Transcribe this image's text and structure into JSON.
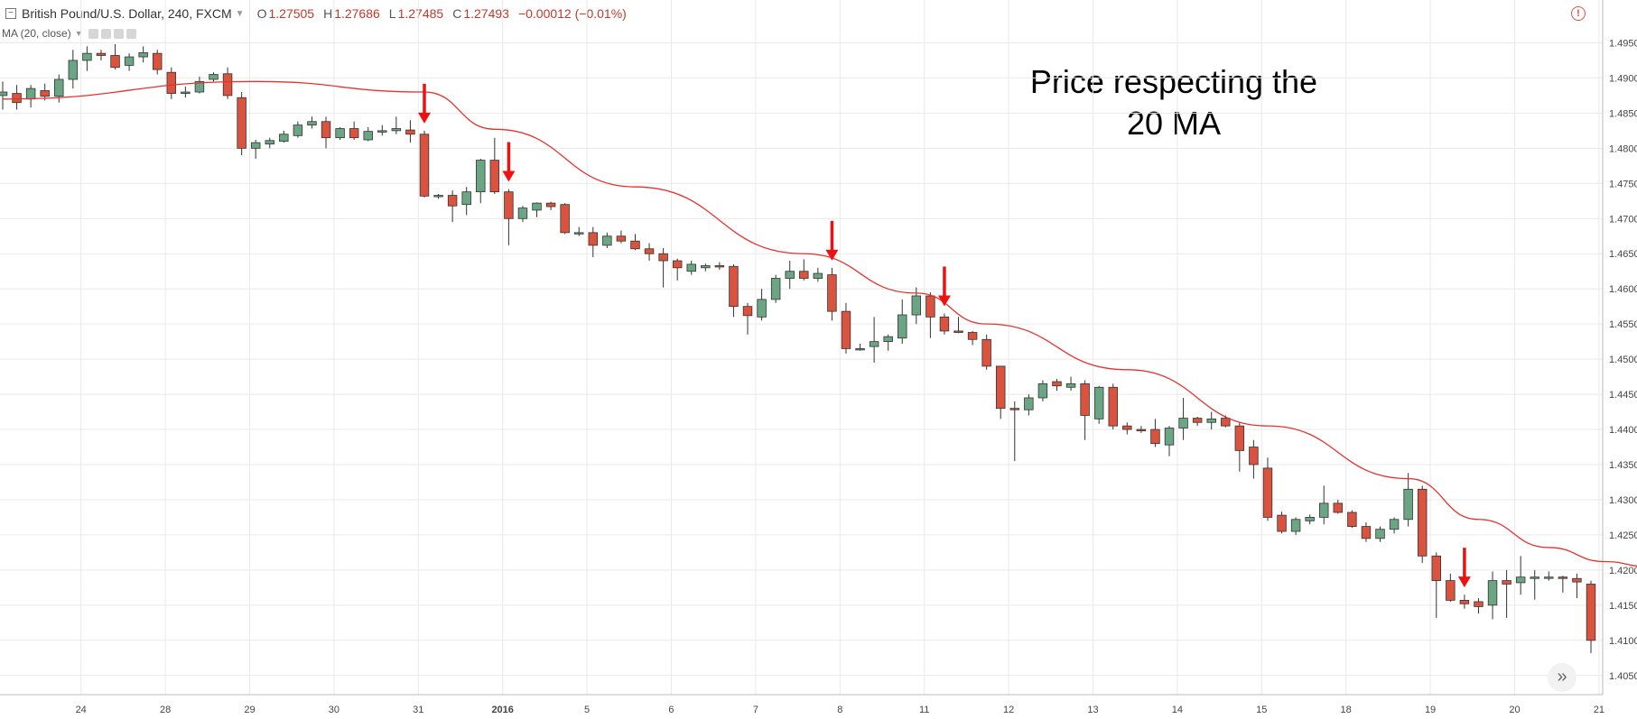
{
  "header": {
    "symbol": "British Pound/U.S. Dollar, 240, FXCM",
    "open_label": "O",
    "open": "1.27505",
    "high_label": "H",
    "high": "1.27686",
    "low_label": "L",
    "low": "1.27485",
    "close_label": "C",
    "close": "1.27493",
    "change": "−0.00012 (−0.01%)"
  },
  "indicator": {
    "label": "MA (20, close)"
  },
  "annotation": {
    "line1": "Price respecting the",
    "line2": "20 MA"
  },
  "colors": {
    "up": "#6aa584",
    "down": "#d9533f",
    "ma": "#e8312f",
    "arrow": "#ee1111",
    "grid": "#e9e9e9"
  },
  "chart_data": {
    "type": "candlestick",
    "title": "",
    "x_ticks": [
      "24",
      "28",
      "29",
      "30",
      "31",
      "2016",
      "5",
      "6",
      "7",
      "8",
      "11",
      "12",
      "13",
      "14",
      "15",
      "18",
      "19",
      "20",
      "21"
    ],
    "y_ticks": [
      "1.49500",
      "1.49000",
      "1.48500",
      "1.48000",
      "1.47500",
      "1.47000",
      "1.46500",
      "1.46000",
      "1.45500",
      "1.45000",
      "1.44500",
      "1.44000",
      "1.43500",
      "1.43000",
      "1.42500",
      "1.42000",
      "1.41500",
      "1.41000",
      "1.40500"
    ],
    "ylim": [
      1.4042,
      1.4966
    ],
    "ohlc": [
      [
        1.4875,
        1.4895,
        1.4855,
        1.488
      ],
      [
        1.4878,
        1.489,
        1.4855,
        1.4865
      ],
      [
        1.487,
        1.489,
        1.4858,
        1.4885
      ],
      [
        1.4882,
        1.4892,
        1.4868,
        1.4874
      ],
      [
        1.4874,
        1.4905,
        1.4865,
        1.4898
      ],
      [
        1.4898,
        1.494,
        1.4885,
        1.4925
      ],
      [
        1.4925,
        1.4945,
        1.491,
        1.4935
      ],
      [
        1.4935,
        1.494,
        1.4925,
        1.4932
      ],
      [
        1.4932,
        1.4948,
        1.4912,
        1.4915
      ],
      [
        1.4918,
        1.4935,
        1.491,
        1.493
      ],
      [
        1.493,
        1.4945,
        1.4922,
        1.4936
      ],
      [
        1.4935,
        1.494,
        1.4905,
        1.4912
      ],
      [
        1.4908,
        1.4915,
        1.487,
        1.4878
      ],
      [
        1.4878,
        1.4888,
        1.4872,
        1.488
      ],
      [
        1.488,
        1.4902,
        1.4878,
        1.4895
      ],
      [
        1.4898,
        1.4908,
        1.4895,
        1.4905
      ],
      [
        1.4906,
        1.4915,
        1.487,
        1.4875
      ],
      [
        1.4872,
        1.488,
        1.479,
        1.48
      ],
      [
        1.48,
        1.4812,
        1.4785,
        1.4808
      ],
      [
        1.4806,
        1.4815,
        1.48,
        1.4811
      ],
      [
        1.481,
        1.4825,
        1.4808,
        1.482
      ],
      [
        1.4818,
        1.4838,
        1.4815,
        1.4833
      ],
      [
        1.4833,
        1.4845,
        1.4828,
        1.4838
      ],
      [
        1.4838,
        1.4845,
        1.48,
        1.4815
      ],
      [
        1.4815,
        1.483,
        1.4812,
        1.4828
      ],
      [
        1.4828,
        1.4838,
        1.4812,
        1.4815
      ],
      [
        1.4812,
        1.483,
        1.481,
        1.4824
      ],
      [
        1.4823,
        1.4833,
        1.4818,
        1.4825
      ],
      [
        1.4825,
        1.4845,
        1.482,
        1.4828
      ],
      [
        1.4826,
        1.484,
        1.4808,
        1.482
      ],
      [
        1.482,
        1.4825,
        1.473,
        1.4732
      ],
      [
        1.4732,
        1.4735,
        1.4728,
        1.4733
      ],
      [
        1.4733,
        1.474,
        1.4695,
        1.4718
      ],
      [
        1.472,
        1.4745,
        1.4705,
        1.4738
      ],
      [
        1.4738,
        1.4785,
        1.4722,
        1.4783
      ],
      [
        1.4783,
        1.4815,
        1.4735,
        1.4738
      ],
      [
        1.4738,
        1.4742,
        1.4662,
        1.47
      ],
      [
        1.47,
        1.4718,
        1.4695,
        1.4715
      ],
      [
        1.4712,
        1.4723,
        1.4702,
        1.4722
      ],
      [
        1.4722,
        1.4724,
        1.4712,
        1.4717
      ],
      [
        1.472,
        1.4722,
        1.4678,
        1.468
      ],
      [
        1.468,
        1.4688,
        1.4675,
        1.468
      ],
      [
        1.468,
        1.4688,
        1.4645,
        1.4662
      ],
      [
        1.4662,
        1.468,
        1.4658,
        1.4675
      ],
      [
        1.4675,
        1.4683,
        1.4665,
        1.4668
      ],
      [
        1.4668,
        1.4678,
        1.4655,
        1.4657
      ],
      [
        1.4657,
        1.4665,
        1.464,
        1.465
      ],
      [
        1.465,
        1.4658,
        1.4602,
        1.464
      ],
      [
        1.464,
        1.4643,
        1.4612,
        1.463
      ],
      [
        1.4625,
        1.464,
        1.462,
        1.4635
      ],
      [
        1.463,
        1.4636,
        1.4625,
        1.4633
      ],
      [
        1.4633,
        1.4638,
        1.4627,
        1.4632
      ],
      [
        1.4632,
        1.4635,
        1.456,
        1.4575
      ],
      [
        1.4575,
        1.458,
        1.4535,
        1.4562
      ],
      [
        1.456,
        1.46,
        1.4555,
        1.4585
      ],
      [
        1.4585,
        1.462,
        1.458,
        1.4615
      ],
      [
        1.4615,
        1.464,
        1.46,
        1.4625
      ],
      [
        1.4625,
        1.4642,
        1.4612,
        1.4615
      ],
      [
        1.4615,
        1.463,
        1.461,
        1.4622
      ],
      [
        1.462,
        1.463,
        1.4555,
        1.4568
      ],
      [
        1.4568,
        1.458,
        1.4508,
        1.4515
      ],
      [
        1.4515,
        1.4522,
        1.4512,
        1.4515
      ],
      [
        1.4518,
        1.456,
        1.4495,
        1.4525
      ],
      [
        1.4525,
        1.4535,
        1.4512,
        1.4532
      ],
      [
        1.453,
        1.4585,
        1.4522,
        1.4563
      ],
      [
        1.4563,
        1.4602,
        1.455,
        1.459
      ],
      [
        1.459,
        1.4595,
        1.453,
        1.456
      ],
      [
        1.456,
        1.4565,
        1.4535,
        1.454
      ],
      [
        1.454,
        1.456,
        1.4537,
        1.4538
      ],
      [
        1.4538,
        1.454,
        1.452,
        1.4528
      ],
      [
        1.4528,
        1.4535,
        1.4485,
        1.449
      ],
      [
        1.449,
        1.449,
        1.4415,
        1.443
      ],
      [
        1.443,
        1.444,
        1.4355,
        1.4428
      ],
      [
        1.4428,
        1.445,
        1.442,
        1.4445
      ],
      [
        1.4445,
        1.447,
        1.444,
        1.4465
      ],
      [
        1.4468,
        1.4472,
        1.4455,
        1.4462
      ],
      [
        1.446,
        1.4475,
        1.4455,
        1.4465
      ],
      [
        1.4465,
        1.447,
        1.4385,
        1.442
      ],
      [
        1.4415,
        1.4462,
        1.4408,
        1.446
      ],
      [
        1.446,
        1.4465,
        1.44,
        1.4405
      ],
      [
        1.4405,
        1.441,
        1.4393,
        1.44
      ],
      [
        1.44,
        1.4405,
        1.4395,
        1.4398
      ],
      [
        1.44,
        1.4415,
        1.4375,
        1.438
      ],
      [
        1.4378,
        1.4405,
        1.4362,
        1.4402
      ],
      [
        1.4402,
        1.4445,
        1.4385,
        1.4416
      ],
      [
        1.4416,
        1.4418,
        1.4405,
        1.441
      ],
      [
        1.441,
        1.4425,
        1.44,
        1.4415
      ],
      [
        1.4416,
        1.442,
        1.4403,
        1.4405
      ],
      [
        1.4405,
        1.441,
        1.434,
        1.437
      ],
      [
        1.4375,
        1.4385,
        1.433,
        1.435
      ],
      [
        1.4345,
        1.436,
        1.427,
        1.4275
      ],
      [
        1.4278,
        1.4283,
        1.4252,
        1.4255
      ],
      [
        1.4255,
        1.4275,
        1.425,
        1.4272
      ],
      [
        1.427,
        1.4279,
        1.4265,
        1.4275
      ],
      [
        1.4275,
        1.432,
        1.4265,
        1.4295
      ],
      [
        1.4295,
        1.43,
        1.428,
        1.4282
      ],
      [
        1.4282,
        1.4285,
        1.426,
        1.4262
      ],
      [
        1.4262,
        1.4268,
        1.424,
        1.4245
      ],
      [
        1.4245,
        1.4262,
        1.424,
        1.4258
      ],
      [
        1.4258,
        1.4275,
        1.4252,
        1.4272
      ],
      [
        1.4272,
        1.4338,
        1.4262,
        1.4315
      ],
      [
        1.4315,
        1.432,
        1.421,
        1.422
      ],
      [
        1.422,
        1.4225,
        1.4132,
        1.4185
      ],
      [
        1.4185,
        1.4195,
        1.4155,
        1.4157
      ],
      [
        1.4157,
        1.4165,
        1.4145,
        1.4152
      ],
      [
        1.4155,
        1.416,
        1.4138,
        1.4148
      ],
      [
        1.415,
        1.4198,
        1.413,
        1.4185
      ],
      [
        1.4185,
        1.42,
        1.4132,
        1.418
      ],
      [
        1.4182,
        1.422,
        1.4165,
        1.419
      ],
      [
        1.4188,
        1.42,
        1.4158,
        1.419
      ],
      [
        1.419,
        1.4198,
        1.4185,
        1.419
      ],
      [
        1.419,
        1.4192,
        1.4168,
        1.4188
      ],
      [
        1.4188,
        1.4195,
        1.416,
        1.4183
      ],
      [
        1.418,
        1.4185,
        1.4082,
        1.41
      ]
    ],
    "ma_label": "MA (20, close)",
    "ma": [
      [
        0,
        1.487
      ],
      [
        18,
        1.4895
      ],
      [
        30,
        1.488
      ],
      [
        35,
        1.4827
      ],
      [
        45,
        1.4745
      ],
      [
        57,
        1.465
      ],
      [
        65,
        1.4594
      ],
      [
        70,
        1.455
      ],
      [
        80,
        1.4485
      ],
      [
        90,
        1.4405
      ],
      [
        100,
        1.433
      ],
      [
        105,
        1.4272
      ],
      [
        110,
        1.4232
      ],
      [
        114,
        1.4212
      ],
      [
        117,
        1.4205
      ]
    ],
    "signal_arrows": [
      30,
      36,
      59,
      67,
      104
    ]
  }
}
